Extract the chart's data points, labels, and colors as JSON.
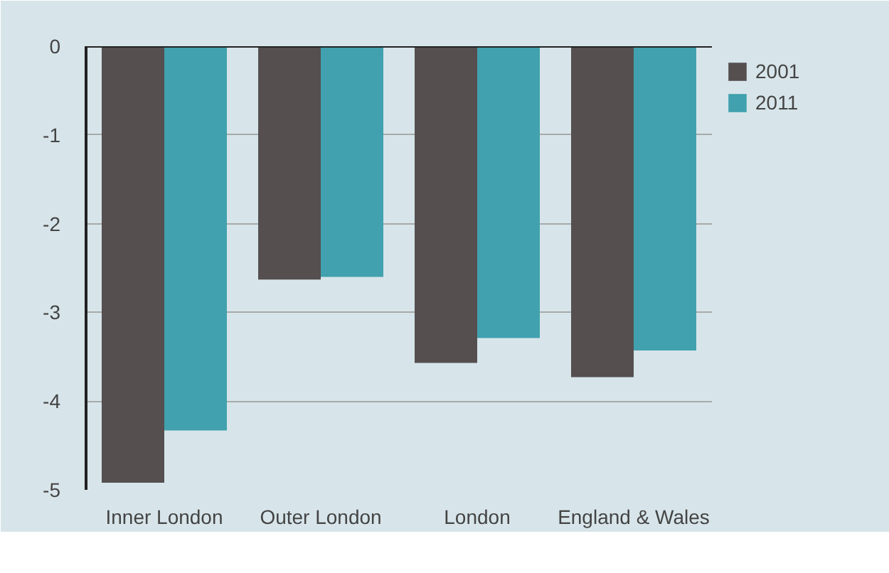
{
  "chart_data": {
    "type": "bar",
    "categories": [
      "Inner London",
      "Outer London",
      "London",
      "England & Wales"
    ],
    "series": [
      {
        "name": "2001",
        "color": "#554f50",
        "values": [
          -4.92,
          -2.63,
          -3.57,
          -3.73
        ]
      },
      {
        "name": "2011",
        "color": "#41a1ae",
        "values": [
          -4.33,
          -2.6,
          -3.29,
          -3.43
        ]
      }
    ],
    "ylim": [
      -5,
      0
    ],
    "yticks": [
      {
        "value": -5,
        "label": "-5"
      },
      {
        "value": -4,
        "label": "-4"
      },
      {
        "value": -3,
        "label": "-3"
      },
      {
        "value": -2,
        "label": "-2"
      },
      {
        "value": -1,
        "label": "-1"
      },
      0
    ],
    "grid": "y",
    "legend": "top right"
  }
}
